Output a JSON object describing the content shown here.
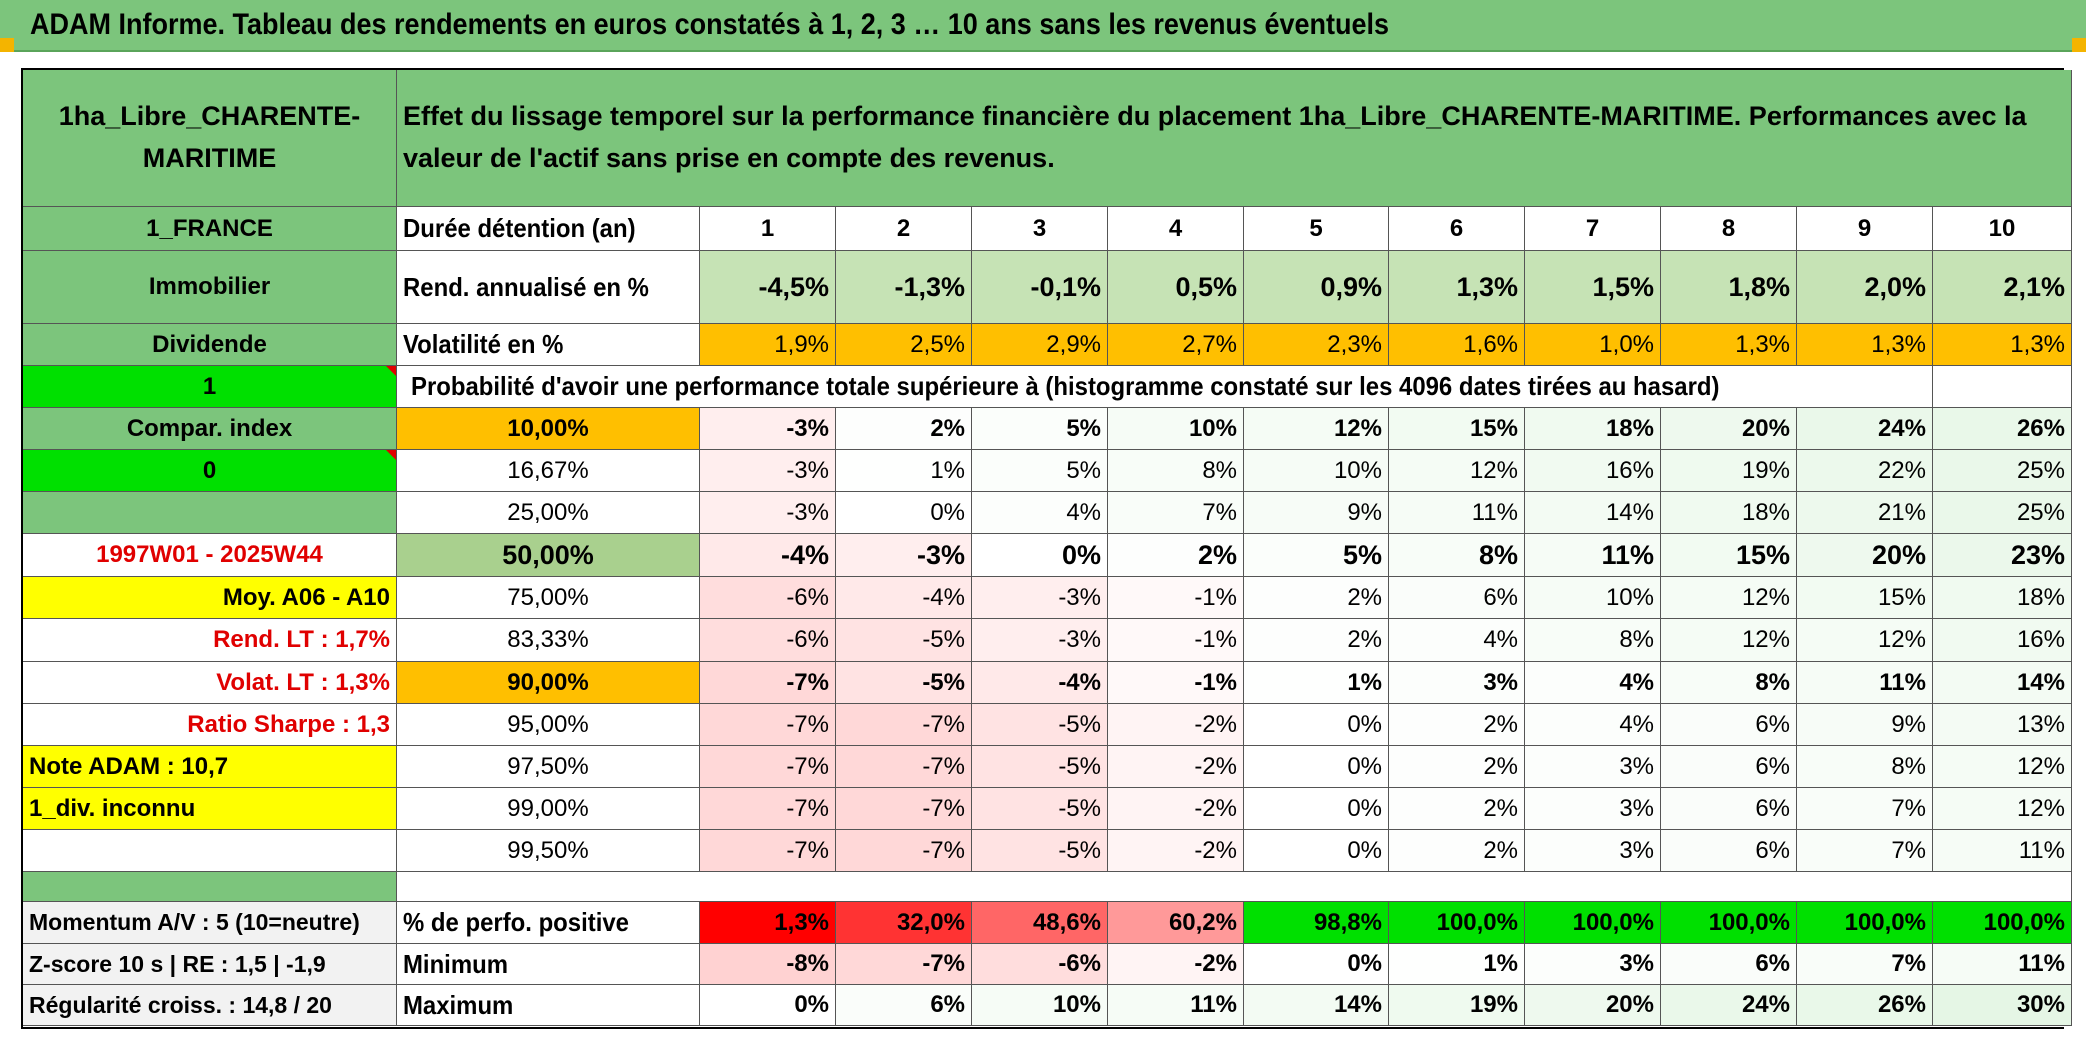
{
  "title": "ADAM Informe. Tableau des rendements en euros constatés à 1, 2, 3 … 10 ans sans les revenus éventuels",
  "header": {
    "asset": "1ha_Libre_CHARENTE-MARITIME",
    "description": "Effet du lissage temporel sur la performance financière du placement 1ha_Libre_CHARENTE-MARITIME. Performances avec la valeur de l'actif sans prise en compte des revenus."
  },
  "left_panel": {
    "country": "1_FRANCE",
    "category": "Immobilier",
    "dividend_label": "Dividende",
    "dividend_flag": "1",
    "compar_index": "Compar. index",
    "compar_flag": "0",
    "period": "1997W01 - 2025W44",
    "moy": "Moy. A06 - A10",
    "rend_lt": "Rend. LT :   1,7%",
    "volat_lt": "Volat. LT :   1,3%",
    "sharpe": "Ratio Sharpe :    1,3",
    "note": "Note ADAM : 10,7",
    "div": "1_div. inconnu",
    "momentum": "Momentum A/V : 5 (10=neutre)",
    "zscore": "Z-score 10 s | RE : 1,5 | -1,9",
    "regularite": "Régularité croiss. : 14,8 / 20"
  },
  "row_labels": {
    "duration": "Durée détention (an)",
    "rend": "Rend. annualisé en %",
    "volat": "Volatilité en %",
    "prob": "Probabilité d'avoir une performance totale supérieure à (histogramme constaté sur les 4096 dates tirées au hasard)",
    "positive": "% de perfo. positive",
    "minimum": "Minimum",
    "maximum": "Maximum"
  },
  "years": [
    "1",
    "2",
    "3",
    "4",
    "5",
    "6",
    "7",
    "8",
    "9",
    "10"
  ],
  "rend": [
    "-4,5%",
    "-1,3%",
    "-0,1%",
    "0,5%",
    "0,9%",
    "1,3%",
    "1,5%",
    "1,8%",
    "2,0%",
    "2,1%"
  ],
  "volat": [
    "1,9%",
    "2,5%",
    "2,9%",
    "2,7%",
    "2,3%",
    "1,6%",
    "1,0%",
    "1,3%",
    "1,3%",
    "1,3%"
  ],
  "percentiles": [
    {
      "p": "10,00%",
      "values": [
        "-3%",
        "2%",
        "5%",
        "10%",
        "12%",
        "15%",
        "18%",
        "20%",
        "24%",
        "26%"
      ]
    },
    {
      "p": "16,67%",
      "values": [
        "-3%",
        "1%",
        "5%",
        "8%",
        "10%",
        "12%",
        "16%",
        "19%",
        "22%",
        "25%"
      ]
    },
    {
      "p": "25,00%",
      "values": [
        "-3%",
        "0%",
        "4%",
        "7%",
        "9%",
        "11%",
        "14%",
        "18%",
        "21%",
        "25%"
      ]
    },
    {
      "p": "50,00%",
      "values": [
        "-4%",
        "-3%",
        "0%",
        "2%",
        "5%",
        "8%",
        "11%",
        "15%",
        "20%",
        "23%"
      ]
    },
    {
      "p": "75,00%",
      "values": [
        "-6%",
        "-4%",
        "-3%",
        "-1%",
        "2%",
        "6%",
        "10%",
        "12%",
        "15%",
        "18%"
      ]
    },
    {
      "p": "83,33%",
      "values": [
        "-6%",
        "-5%",
        "-3%",
        "-1%",
        "2%",
        "4%",
        "8%",
        "12%",
        "12%",
        "16%"
      ]
    },
    {
      "p": "90,00%",
      "values": [
        "-7%",
        "-5%",
        "-4%",
        "-1%",
        "1%",
        "3%",
        "4%",
        "8%",
        "11%",
        "14%"
      ]
    },
    {
      "p": "95,00%",
      "values": [
        "-7%",
        "-7%",
        "-5%",
        "-2%",
        "0%",
        "2%",
        "4%",
        "6%",
        "9%",
        "13%"
      ]
    },
    {
      "p": "97,50%",
      "values": [
        "-7%",
        "-7%",
        "-5%",
        "-2%",
        "0%",
        "2%",
        "3%",
        "6%",
        "8%",
        "12%"
      ]
    },
    {
      "p": "99,00%",
      "values": [
        "-7%",
        "-7%",
        "-5%",
        "-2%",
        "0%",
        "2%",
        "3%",
        "6%",
        "7%",
        "12%"
      ]
    },
    {
      "p": "99,50%",
      "values": [
        "-7%",
        "-7%",
        "-5%",
        "-2%",
        "0%",
        "2%",
        "3%",
        "6%",
        "7%",
        "11%"
      ]
    }
  ],
  "positive": [
    "1,3%",
    "32,0%",
    "48,6%",
    "60,2%",
    "98,8%",
    "100,0%",
    "100,0%",
    "100,0%",
    "100,0%",
    "100,0%"
  ],
  "minimum": [
    "-8%",
    "-7%",
    "-6%",
    "-2%",
    "0%",
    "1%",
    "3%",
    "6%",
    "7%",
    "11%"
  ],
  "maximum": [
    "0%",
    "6%",
    "10%",
    "11%",
    "14%",
    "19%",
    "20%",
    "24%",
    "26%",
    "30%"
  ],
  "colors": {
    "header_green": "#7cc57c",
    "bright_green": "#00e000",
    "highlight_yellow": "#ffff00",
    "highlight_orange": "#ffbf00",
    "negative_red": "#ff0000",
    "positive_green": "#63be7b",
    "label_red": "#e00000"
  }
}
